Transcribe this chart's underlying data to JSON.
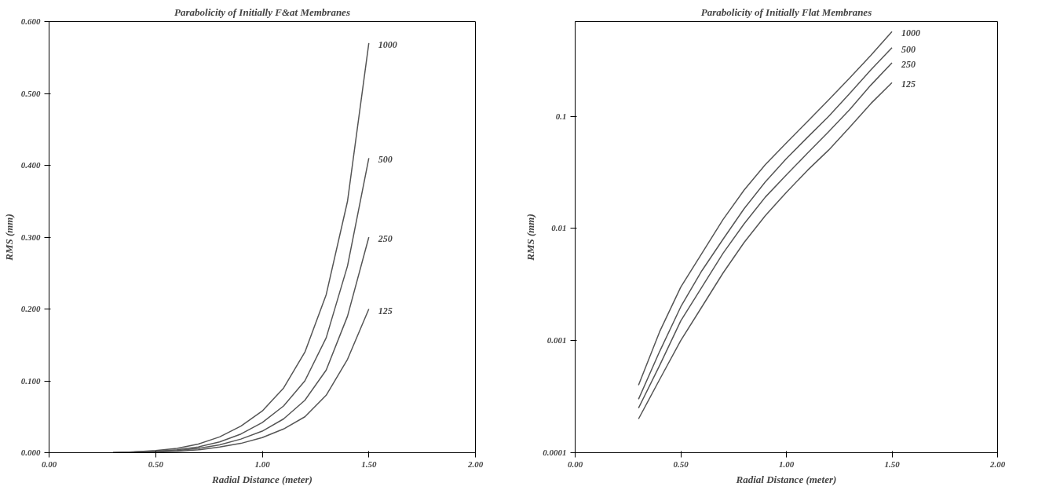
{
  "chart_data": [
    {
      "type": "line",
      "title": "Parabolicity of Initially F&at Membranes",
      "xlabel": "Radial Distance (meter)",
      "ylabel": "RMS (mm)",
      "x": [
        0.3,
        0.4,
        0.5,
        0.6,
        0.7,
        0.8,
        0.9,
        1.0,
        1.1,
        1.2,
        1.3,
        1.4,
        1.5
      ],
      "series": [
        {
          "name": "1000",
          "color": "#555555",
          "values": [
            0,
            0.001,
            0.003,
            0.006,
            0.012,
            0.022,
            0.037,
            0.058,
            0.09,
            0.14,
            0.22,
            0.35,
            0.57
          ]
        },
        {
          "name": "500",
          "color": "#555555",
          "values": [
            0,
            0.001,
            0.002,
            0.004,
            0.008,
            0.015,
            0.026,
            0.042,
            0.065,
            0.1,
            0.16,
            0.26,
            0.41
          ]
        },
        {
          "name": "250",
          "color": "#555555",
          "values": [
            0,
            0.001,
            0.002,
            0.003,
            0.006,
            0.011,
            0.019,
            0.03,
            0.047,
            0.073,
            0.115,
            0.19,
            0.3
          ]
        },
        {
          "name": "125",
          "color": "#555555",
          "values": [
            0,
            0,
            0.001,
            0.002,
            0.004,
            0.008,
            0.013,
            0.021,
            0.033,
            0.05,
            0.08,
            0.13,
            0.2
          ]
        }
      ],
      "xlim": [
        0,
        2
      ],
      "ylim": [
        0,
        0.6
      ],
      "xticks": [
        {
          "value": 0,
          "label": "0.00"
        },
        {
          "value": 0.5,
          "label": "0.50"
        },
        {
          "value": 1,
          "label": "1.00"
        },
        {
          "value": 1.5,
          "label": "1.50"
        },
        {
          "value": 2,
          "label": "2.00"
        }
      ],
      "yticks": [
        {
          "value": 0,
          "label": "0.000"
        },
        {
          "value": 0.1,
          "label": "0.100"
        },
        {
          "value": 0.2,
          "label": "0.200"
        },
        {
          "value": 0.3,
          "label": "0.300"
        },
        {
          "value": 0.4,
          "label": "0.400"
        },
        {
          "value": 0.5,
          "label": "0.500"
        },
        {
          "value": 0.6,
          "label": "0.600"
        }
      ]
    },
    {
      "type": "line",
      "title": "Parabolicity of Initially Flat Membranes",
      "xlabel": "Radial Distance (meter)",
      "ylabel": "RMS (mm)",
      "log": "y",
      "x": [
        0.3,
        0.4,
        0.5,
        0.6,
        0.7,
        0.8,
        0.9,
        1.0,
        1.1,
        1.2,
        1.3,
        1.4,
        1.5
      ],
      "series": [
        {
          "name": "1000",
          "color": "#555555",
          "values": [
            0.0004,
            0.0012,
            0.003,
            0.006,
            0.012,
            0.022,
            0.037,
            0.058,
            0.09,
            0.14,
            0.22,
            0.35,
            0.57
          ]
        },
        {
          "name": "500",
          "color": "#555555",
          "values": [
            0.0003,
            0.0008,
            0.002,
            0.0042,
            0.008,
            0.015,
            0.026,
            0.042,
            0.065,
            0.1,
            0.16,
            0.26,
            0.41
          ]
        },
        {
          "name": "250",
          "color": "#555555",
          "values": [
            0.00025,
            0.0006,
            0.0015,
            0.003,
            0.006,
            0.011,
            0.019,
            0.03,
            0.047,
            0.073,
            0.115,
            0.19,
            0.3
          ]
        },
        {
          "name": "125",
          "color": "#555555",
          "values": [
            0.0002,
            0.00045,
            0.001,
            0.002,
            0.004,
            0.0075,
            0.013,
            0.021,
            0.033,
            0.05,
            0.08,
            0.13,
            0.2
          ]
        }
      ],
      "xlim": [
        0,
        2
      ],
      "ylim": [
        0.0001,
        0.7
      ],
      "xticks": [
        {
          "value": 0,
          "label": "0.00"
        },
        {
          "value": 0.5,
          "label": "0.50"
        },
        {
          "value": 1,
          "label": "1.00"
        },
        {
          "value": 1.5,
          "label": "1.50"
        },
        {
          "value": 2,
          "label": "2.00"
        }
      ],
      "yticks": [
        0.0001,
        0.001,
        0.01,
        0.1
      ]
    }
  ]
}
